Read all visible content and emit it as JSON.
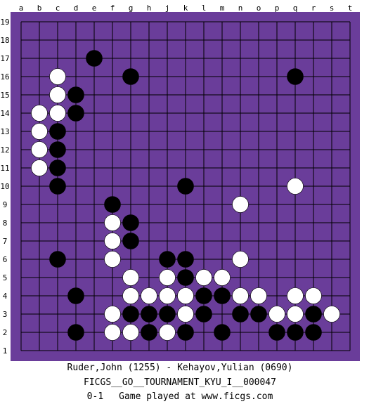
{
  "board": {
    "columns": [
      "a",
      "b",
      "c",
      "d",
      "e",
      "f",
      "g",
      "h",
      "j",
      "k",
      "l",
      "m",
      "n",
      "o",
      "p",
      "q",
      "r",
      "s",
      "t"
    ],
    "rows": [
      "19",
      "18",
      "17",
      "16",
      "15",
      "14",
      "13",
      "12",
      "11",
      "10",
      "9",
      "8",
      "7",
      "6",
      "5",
      "4",
      "3",
      "2",
      "1"
    ],
    "colors": {
      "board": "#6a3d9a",
      "lines": "#000000",
      "black_stone": "#000000",
      "white_stone": "#ffffff"
    },
    "black_stones": [
      "e17",
      "g16",
      "q16",
      "d15",
      "d14",
      "c13",
      "c12",
      "c11",
      "c10",
      "k10",
      "f9",
      "g8",
      "g7",
      "c6",
      "j6",
      "k6",
      "k5",
      "d4",
      "l4",
      "m4",
      "g3",
      "h3",
      "j3",
      "l3",
      "n3",
      "o3",
      "r3",
      "d2",
      "h2",
      "k2",
      "m2",
      "p2",
      "q2",
      "r2"
    ],
    "white_stones": [
      "c16",
      "c15",
      "b14",
      "c14",
      "b13",
      "b12",
      "b11",
      "q10",
      "n9",
      "f8",
      "f7",
      "f6",
      "n6",
      "g5",
      "j5",
      "l5",
      "m5",
      "g4",
      "h4",
      "j4",
      "k4",
      "n4",
      "o4",
      "q4",
      "r4",
      "f3",
      "k3",
      "p3",
      "q3",
      "s3",
      "f2",
      "g2",
      "j2"
    ]
  },
  "game": {
    "players": "Ruder,John (1255) - Kehayov,Yulian (0690)",
    "tournament": "FICGS__GO__TOURNAMENT_KYU_I__000047",
    "result": "0-1",
    "site": "Game played at www.ficgs.com"
  }
}
